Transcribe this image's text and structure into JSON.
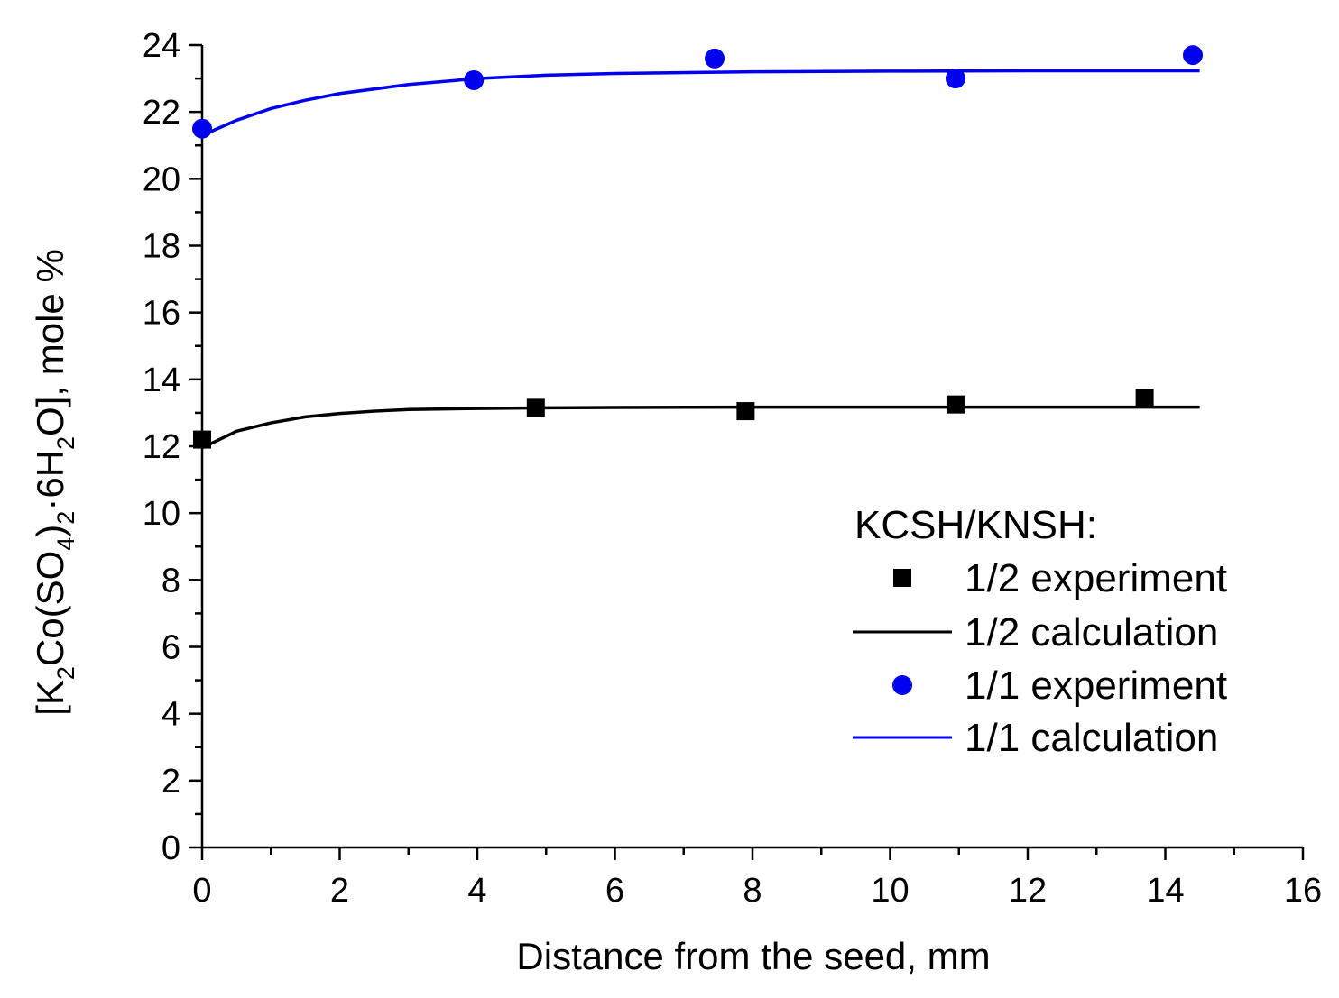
{
  "chart_data": {
    "type": "scatter",
    "title": "",
    "xlabel": "Distance from the seed, mm",
    "ylabel": "[K2Co(SO4)2·6H2O], mole %",
    "ylabel_parts": {
      "p1": "[K",
      "s1": "2",
      "p2": "Co(SO",
      "s2": "4",
      "p3": ")",
      "s3": "2",
      "p4": "·6H",
      "s4": "2",
      "p5": "O], mole %"
    },
    "xlim": [
      0,
      16
    ],
    "ylim": [
      0,
      24
    ],
    "x_ticks": [
      "0",
      "2",
      "4",
      "6",
      "8",
      "10",
      "12",
      "14",
      "16"
    ],
    "y_ticks": [
      "0",
      "2",
      "4",
      "6",
      "8",
      "10",
      "12",
      "14",
      "16",
      "18",
      "20",
      "22",
      "24"
    ],
    "legend_title": "KCSH/KNSH:",
    "series": [
      {
        "name": "1/2 experiment",
        "kind": "points",
        "marker": "square",
        "color": "#000000",
        "x": [
          0,
          4.85,
          7.9,
          10.95,
          13.7
        ],
        "y": [
          12.2,
          13.15,
          13.05,
          13.25,
          13.45
        ]
      },
      {
        "name": "1/2 calculation",
        "kind": "line",
        "color": "#000000",
        "x": [
          0,
          0.25,
          0.5,
          1,
          1.5,
          2,
          2.5,
          3,
          4,
          5,
          6,
          8,
          10,
          12,
          14.5
        ],
        "y": [
          11.95,
          12.2,
          12.45,
          12.7,
          12.88,
          12.98,
          13.05,
          13.1,
          13.13,
          13.15,
          13.16,
          13.17,
          13.17,
          13.17,
          13.17
        ]
      },
      {
        "name": "1/1 experiment",
        "kind": "points",
        "marker": "circle",
        "color": "#0000ee",
        "x": [
          0,
          3.95,
          7.45,
          10.95,
          14.4
        ],
        "y": [
          21.5,
          22.95,
          23.6,
          23.0,
          23.7
        ]
      },
      {
        "name": "1/1 calculation",
        "kind": "line",
        "color": "#0000ee",
        "x": [
          0,
          0.5,
          1,
          1.5,
          2,
          3,
          4,
          5,
          6,
          8,
          10,
          12,
          14.5
        ],
        "y": [
          21.3,
          21.75,
          22.1,
          22.35,
          22.55,
          22.82,
          23.0,
          23.1,
          23.15,
          23.2,
          23.22,
          23.23,
          23.23
        ]
      }
    ],
    "legend_position": "center-right"
  }
}
